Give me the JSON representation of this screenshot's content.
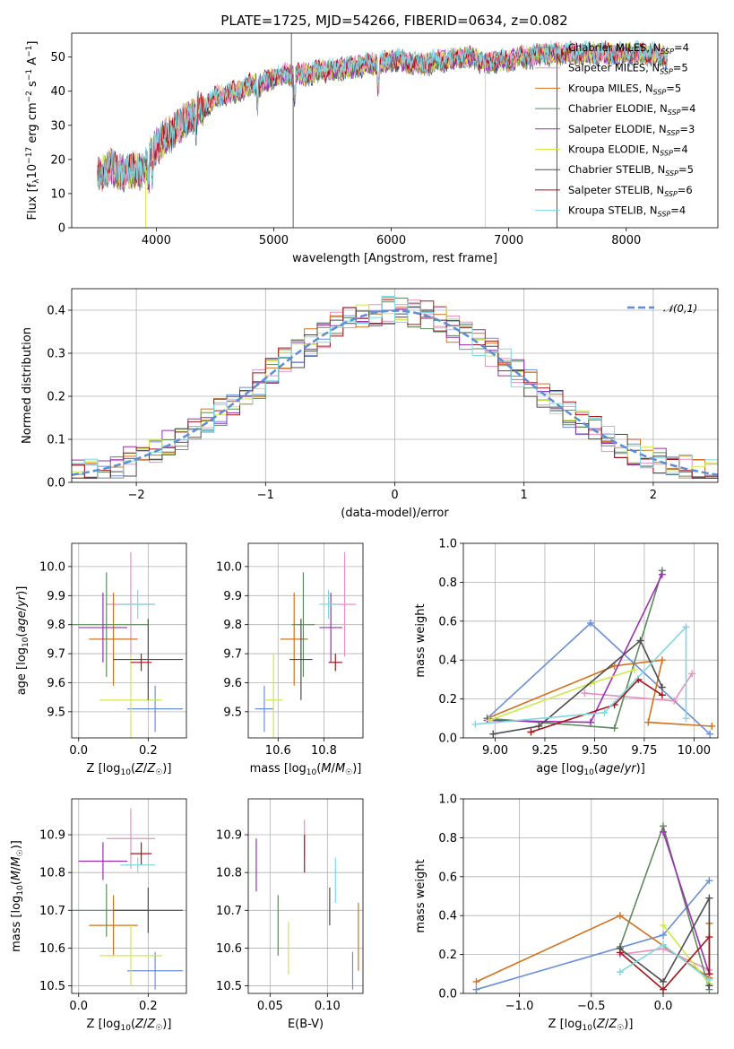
{
  "title": "PLATE=1725, MJD=54266, FIBERID=0634, z=0.082",
  "model_colors": [
    "#6a8fd8",
    "#e88fbf",
    "#d2721e",
    "#5f8a5f",
    "#9a2fb0",
    "#cfe84a",
    "#4d4d4d",
    "#a5161c",
    "#7fd8e0"
  ],
  "chart_data": [
    {
      "id": "spectrum",
      "type": "line",
      "xlabel": "wavelength [Angstrom, rest frame]",
      "ylabel": "Flux [f_λ 10^-17 erg cm^-2 s^-1 A^-1]",
      "xlim": [
        3280,
        8780
      ],
      "ylim": [
        0,
        57
      ],
      "xticks": [
        "4000",
        "5000",
        "6000",
        "7000",
        "8000"
      ],
      "yticks": [
        "0",
        "10",
        "20",
        "30",
        "40",
        "50"
      ],
      "grid": false,
      "legend_position": "top-right",
      "legend": [
        {
          "label": "Chabrier MILES, N",
          "sub": "SSP",
          "eq": "=4"
        },
        {
          "label": "Salpeter MILES, N",
          "sub": "SSP",
          "eq": "=5"
        },
        {
          "label": "Kroupa MILES, N",
          "sub": "SSP",
          "eq": "=5"
        },
        {
          "label": "Chabrier ELODIE, N",
          "sub": "SSP",
          "eq": "=4"
        },
        {
          "label": "Salpeter ELODIE, N",
          "sub": "SSP",
          "eq": "=3"
        },
        {
          "label": "Kroupa ELODIE, N",
          "sub": "SSP",
          "eq": "=4"
        },
        {
          "label": "Chabrier STELIB, N",
          "sub": "SSP",
          "eq": "=5"
        },
        {
          "label": "Salpeter STELIB, N",
          "sub": "SSP",
          "eq": "=6"
        },
        {
          "label": "Kroupa STELIB, N",
          "sub": "SSP",
          "eq": "=4"
        }
      ],
      "continuum": {
        "x": [
          3500,
          3600,
          3700,
          3800,
          3900,
          3950,
          4000,
          4100,
          4200,
          4300,
          4400,
          4500,
          4600,
          4700,
          4800,
          4900,
          5000,
          5100,
          5200,
          5300,
          5400,
          5500,
          5600,
          5700,
          5800,
          5900,
          6000,
          6100,
          6200,
          6300,
          6400,
          6500,
          6600,
          6700,
          6800,
          6900,
          7000,
          7100,
          7200,
          7300,
          7400,
          7600,
          7800,
          8000,
          8200,
          8350
        ],
        "y": [
          15,
          18,
          16,
          17,
          17,
          22,
          24,
          27,
          30,
          33,
          35,
          38,
          39,
          40,
          42,
          42,
          44,
          45,
          45,
          45,
          46,
          46,
          47,
          47,
          48,
          48,
          49,
          49,
          48,
          48,
          49,
          49,
          50,
          50,
          48,
          49,
          49,
          50,
          50,
          51,
          51,
          51,
          51,
          51,
          51,
          50
        ]
      },
      "spikes": [
        {
          "x": 3910,
          "y": 0
        },
        {
          "x": 5150,
          "y": 57
        },
        {
          "x": 5165,
          "y": 0
        },
        {
          "x": 6800,
          "y": 0
        },
        {
          "x": 7410,
          "y": 0
        }
      ]
    },
    {
      "id": "residual_histogram",
      "type": "step",
      "xlabel": "(data-model)/error",
      "ylabel": "Normed distribution",
      "xlim": [
        -2.5,
        2.5
      ],
      "ylim": [
        0,
        0.45
      ],
      "xticks": [
        "−2",
        "−1",
        "0",
        "1",
        "2"
      ],
      "yticks": [
        "0.0",
        "0.1",
        "0.2",
        "0.3",
        "0.4"
      ],
      "grid": true,
      "legend_position": "top-right",
      "reference_curve": {
        "label": "𝒩(0,1)",
        "mean": 0,
        "sigma": 1
      },
      "bin_width": 0.1
    },
    {
      "id": "age_vs_Z",
      "type": "errorbar",
      "xlabel": "Z [log10(Z/Z☉)]",
      "ylabel": "age [log10(age/yr)]",
      "xlim": [
        -0.02,
        0.31
      ],
      "ylim": [
        9.41,
        10.08
      ],
      "xticks": [
        "0.0",
        "0.2"
      ],
      "yticks": [
        "9.5",
        "9.6",
        "9.7",
        "9.8",
        "9.9",
        "10.0"
      ],
      "grid": true,
      "points": [
        {
          "x": 0.22,
          "xerr": 0.08,
          "y": 9.51,
          "yerr": 0.08
        },
        {
          "x": 0.15,
          "xerr": 0.07,
          "y": 9.87,
          "yerr": 0.18
        },
        {
          "x": 0.1,
          "xerr": 0.07,
          "y": 9.75,
          "yerr": 0.16
        },
        {
          "x": 0.08,
          "xerr": 0.12,
          "y": 9.8,
          "yerr": 0.18
        },
        {
          "x": 0.07,
          "xerr": 0.07,
          "y": 9.79,
          "yerr": 0.12
        },
        {
          "x": 0.15,
          "xerr": 0.09,
          "y": 9.54,
          "yerr": 0.16
        },
        {
          "x": 0.2,
          "xerr": 0.1,
          "y": 9.68,
          "yerr": 0.14
        },
        {
          "x": 0.18,
          "xerr": 0.03,
          "y": 9.67,
          "yerr": 0.03
        },
        {
          "x": 0.17,
          "xerr": 0.05,
          "y": 9.87,
          "yerr": 0.05
        }
      ]
    },
    {
      "id": "age_vs_mass",
      "type": "errorbar",
      "xlabel": "mass [log10(M/M☉)]",
      "ylabel": "",
      "xlim": [
        10.47,
        10.97
      ],
      "ylim": [
        9.41,
        10.08
      ],
      "xticks": [
        "10.6",
        "10.8"
      ],
      "yticks": [
        "9.5",
        "9.6",
        "9.7",
        "9.8",
        "9.9",
        "10.0"
      ],
      "grid": true,
      "points": [
        {
          "x": 10.54,
          "xerr": 0.04,
          "y": 9.51,
          "yerr": 0.08
        },
        {
          "x": 10.89,
          "xerr": 0.05,
          "y": 9.87,
          "yerr": 0.18
        },
        {
          "x": 10.67,
          "xerr": 0.06,
          "y": 9.75,
          "yerr": 0.16
        },
        {
          "x": 10.71,
          "xerr": 0.05,
          "y": 9.8,
          "yerr": 0.18
        },
        {
          "x": 10.83,
          "xerr": 0.05,
          "y": 9.79,
          "yerr": 0.12
        },
        {
          "x": 10.58,
          "xerr": 0.04,
          "y": 9.54,
          "yerr": 0.16
        },
        {
          "x": 10.7,
          "xerr": 0.05,
          "y": 9.68,
          "yerr": 0.14
        },
        {
          "x": 10.85,
          "xerr": 0.03,
          "y": 9.67,
          "yerr": 0.03
        },
        {
          "x": 10.82,
          "xerr": 0.04,
          "y": 9.87,
          "yerr": 0.05
        }
      ]
    },
    {
      "id": "weight_vs_age",
      "type": "line",
      "xlabel": "age [log10(age/yr)]",
      "ylabel": "mass weight",
      "xlim": [
        8.84,
        10.12
      ],
      "ylim": [
        0,
        1.0
      ],
      "xticks": [
        "9.00",
        "9.25",
        "9.50",
        "9.75",
        "10.00"
      ],
      "yticks": [
        "0.0",
        "0.2",
        "0.4",
        "0.6",
        "0.8",
        "1.0"
      ],
      "grid": true,
      "series": [
        {
          "x": [
            8.96,
            9.48,
            10.08
          ],
          "y": [
            0.1,
            0.59,
            0.02
          ]
        },
        {
          "x": [
            9.45,
            9.9,
            9.99
          ],
          "y": [
            0.23,
            0.19,
            0.33
          ]
        },
        {
          "x": [
            8.96,
            9.6,
            9.84,
            9.77,
            10.09
          ],
          "y": [
            0.1,
            0.37,
            0.4,
            0.08,
            0.06
          ]
        },
        {
          "x": [
            8.96,
            9.6,
            9.84
          ],
          "y": [
            0.1,
            0.05,
            0.86
          ]
        },
        {
          "x": [
            8.96,
            9.48,
            9.84
          ],
          "y": [
            0.09,
            0.08,
            0.84
          ]
        },
        {
          "x": [
            8.97,
            9.48,
            9.7
          ],
          "y": [
            0.09,
            0.28,
            0.35
          ]
        },
        {
          "x": [
            8.99,
            9.22,
            9.73,
            9.84
          ],
          "y": [
            0.02,
            0.06,
            0.5,
            0.26
          ]
        },
        {
          "x": [
            9.18,
            9.6,
            9.72,
            9.84
          ],
          "y": [
            0.03,
            0.17,
            0.3,
            0.22
          ]
        },
        {
          "x": [
            8.9,
            9.55,
            9.96,
            9.96
          ],
          "y": [
            0.07,
            0.13,
            0.57,
            0.1
          ]
        }
      ]
    },
    {
      "id": "mass_vs_Z",
      "type": "errorbar",
      "xlabel": "Z [log10(Z/Z☉)]",
      "ylabel": "mass [log10(M/M☉)]",
      "xlim": [
        -0.02,
        0.31
      ],
      "ylim": [
        10.48,
        10.995
      ],
      "xticks": [
        "0.0",
        "0.2"
      ],
      "yticks": [
        "10.5",
        "10.6",
        "10.7",
        "10.8",
        "10.9"
      ],
      "grid": true,
      "points": [
        {
          "x": 0.22,
          "xerr": 0.08,
          "y": 10.54,
          "yerr": 0.05
        },
        {
          "x": 0.15,
          "xerr": 0.07,
          "y": 10.89,
          "yerr": 0.08
        },
        {
          "x": 0.1,
          "xerr": 0.07,
          "y": 10.66,
          "yerr": 0.08
        },
        {
          "x": 0.08,
          "xerr": 0.12,
          "y": 10.7,
          "yerr": 0.07
        },
        {
          "x": 0.07,
          "xerr": 0.07,
          "y": 10.83,
          "yerr": 0.05
        },
        {
          "x": 0.15,
          "xerr": 0.09,
          "y": 10.58,
          "yerr": 0.08
        },
        {
          "x": 0.2,
          "xerr": 0.1,
          "y": 10.7,
          "yerr": 0.06
        },
        {
          "x": 0.18,
          "xerr": 0.03,
          "y": 10.85,
          "yerr": 0.03
        },
        {
          "x": 0.17,
          "xerr": 0.05,
          "y": 10.82,
          "yerr": 0.02
        }
      ]
    },
    {
      "id": "mass_vs_ebv",
      "type": "errorbar",
      "xlabel": "E(B-V)",
      "ylabel": "",
      "xlim": [
        0.031,
        0.131
      ],
      "ylim": [
        10.48,
        10.995
      ],
      "xticks": [
        "0.05",
        "0.10"
      ],
      "yticks": [
        "10.5",
        "10.6",
        "10.7",
        "10.8",
        "10.9"
      ],
      "grid": true,
      "points": [
        {
          "x": 0.122,
          "xerr": 0,
          "y": 10.54,
          "yerr": 0.05
        },
        {
          "x": 0.08,
          "xerr": 0,
          "y": 10.89,
          "yerr": 0.05
        },
        {
          "x": 0.127,
          "xerr": 0,
          "y": 10.63,
          "yerr": 0.09
        },
        {
          "x": 0.057,
          "xerr": 0,
          "y": 10.66,
          "yerr": 0.08
        },
        {
          "x": 0.038,
          "xerr": 0,
          "y": 10.82,
          "yerr": 0.07
        },
        {
          "x": 0.066,
          "xerr": 0,
          "y": 10.6,
          "yerr": 0.07
        },
        {
          "x": 0.102,
          "xerr": 0,
          "y": 10.71,
          "yerr": 0.05
        },
        {
          "x": 0.08,
          "xerr": 0,
          "y": 10.85,
          "yerr": 0.05
        },
        {
          "x": 0.107,
          "xerr": 0,
          "y": 10.78,
          "yerr": 0.06
        }
      ]
    },
    {
      "id": "weight_vs_Z",
      "type": "line",
      "xlabel": "Z [log10(Z/Z☉)]",
      "ylabel": "mass weight",
      "xlim": [
        -1.39,
        0.38
      ],
      "ylim": [
        0,
        1.0
      ],
      "xticks": [
        "−1.0",
        "−0.5",
        "0.0"
      ],
      "yticks": [
        "0.0",
        "0.2",
        "0.4",
        "0.6",
        "0.8",
        "1.0"
      ],
      "grid": true,
      "series": [
        {
          "x": [
            -1.3,
            0.0,
            0.32
          ],
          "y": [
            0.02,
            0.3,
            0.58
          ]
        },
        {
          "x": [
            -0.3,
            0.0,
            0.32
          ],
          "y": [
            0.2,
            0.23,
            0.12
          ]
        },
        {
          "x": [
            -1.3,
            -0.3,
            0.32,
            0.32
          ],
          "y": [
            0.06,
            0.4,
            0.08,
            0.36
          ]
        },
        {
          "x": [
            -0.3,
            0.0,
            0.32
          ],
          "y": [
            0.24,
            0.86,
            0.02
          ]
        },
        {
          "x": [
            0.0,
            0.32
          ],
          "y": [
            0.83,
            0.1
          ]
        },
        {
          "x": [
            0.0,
            0.32
          ],
          "y": [
            0.35,
            0.05
          ]
        },
        {
          "x": [
            -0.3,
            0.0,
            0.32,
            0.32
          ],
          "y": [
            0.23,
            0.06,
            0.49,
            0.04
          ]
        },
        {
          "x": [
            -0.3,
            0.0,
            0.32,
            0.32
          ],
          "y": [
            0.21,
            0.02,
            0.29,
            0.1
          ]
        },
        {
          "x": [
            -0.3,
            0.0,
            0.32
          ],
          "y": [
            0.11,
            0.25,
            0.07
          ]
        }
      ]
    }
  ]
}
